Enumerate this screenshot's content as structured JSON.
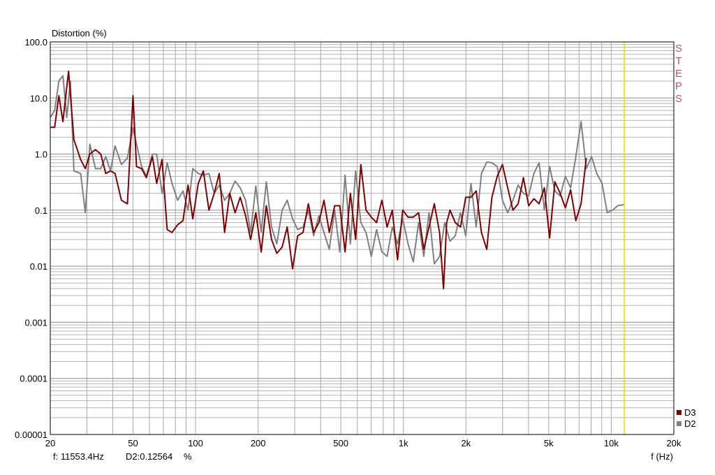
{
  "chart_data": {
    "type": "line",
    "title": "",
    "ylabel": "Distortion (%)",
    "xlabel": "f (Hz)",
    "x_scale": "log",
    "y_scale": "log",
    "xlim": [
      20,
      20000
    ],
    "ylim": [
      1e-05,
      100
    ],
    "grid": true,
    "legend_position": "bottom-right",
    "x_ticks": [
      {
        "value": 20,
        "label": "20"
      },
      {
        "value": 50,
        "label": "50"
      },
      {
        "value": 100,
        "label": "100"
      },
      {
        "value": 200,
        "label": "200"
      },
      {
        "value": 500,
        "label": "500"
      },
      {
        "value": 1000,
        "label": "1k"
      },
      {
        "value": 2000,
        "label": "2k"
      },
      {
        "value": 5000,
        "label": "5k"
      },
      {
        "value": 10000,
        "label": "10k"
      },
      {
        "value": 20000,
        "label": "20k"
      }
    ],
    "y_ticks": [
      {
        "value": 100,
        "label": "100.0"
      },
      {
        "value": 10,
        "label": "10.0"
      },
      {
        "value": 1,
        "label": "1.0"
      },
      {
        "value": 0.1,
        "label": "0.1"
      },
      {
        "value": 0.01,
        "label": "0.01"
      },
      {
        "value": 0.001,
        "label": "0.001"
      },
      {
        "value": 0.0001,
        "label": "0.0001"
      },
      {
        "value": 1e-05,
        "label": "0.00001"
      }
    ],
    "cursor_frequency": 11553.4,
    "cursor_color": "#e8e000",
    "side_label": "STEPS",
    "readout": {
      "frequency": "f:  11553.4Hz",
      "value": "D2:0.12564",
      "unit": "%"
    },
    "series": [
      {
        "name": "D2",
        "color": "#808080",
        "points": [
          [
            20,
            4.5
          ],
          [
            21,
            6.0
          ],
          [
            22,
            20
          ],
          [
            23,
            25
          ],
          [
            24,
            4.5
          ],
          [
            25,
            20
          ],
          [
            26,
            0.5
          ],
          [
            28,
            0.45
          ],
          [
            29.5,
            0.09
          ],
          [
            31,
            1.5
          ],
          [
            33,
            0.55
          ],
          [
            35,
            0.55
          ],
          [
            37,
            0.9
          ],
          [
            39,
            0.5
          ],
          [
            41,
            1.4
          ],
          [
            44,
            0.65
          ],
          [
            47,
            0.85
          ],
          [
            50,
            3.0
          ],
          [
            52,
            1.5
          ],
          [
            55,
            0.6
          ],
          [
            58,
            0.4
          ],
          [
            62,
            1.0
          ],
          [
            65,
            1.0
          ],
          [
            69,
            0.2
          ],
          [
            73,
            0.7
          ],
          [
            77,
            0.3
          ],
          [
            82,
            0.15
          ],
          [
            87,
            0.22
          ],
          [
            92,
            0.1
          ],
          [
            97,
            0.55
          ],
          [
            103,
            0.45
          ],
          [
            109,
            0.42
          ],
          [
            116,
            0.45
          ],
          [
            123,
            0.2
          ],
          [
            130,
            0.28
          ],
          [
            138,
            0.15
          ],
          [
            146,
            0.2
          ],
          [
            155,
            0.33
          ],
          [
            164,
            0.25
          ],
          [
            174,
            0.15
          ],
          [
            184,
            0.04
          ],
          [
            195,
            0.27
          ],
          [
            207,
            0.04
          ],
          [
            219,
            0.32
          ],
          [
            232,
            0.05
          ],
          [
            246,
            0.025
          ],
          [
            261,
            0.1
          ],
          [
            276,
            0.15
          ],
          [
            293,
            0.07
          ],
          [
            310,
            0.045
          ],
          [
            329,
            0.05
          ],
          [
            349,
            0.1
          ],
          [
            370,
            0.035
          ],
          [
            392,
            0.08
          ],
          [
            415,
            0.04
          ],
          [
            440,
            0.02
          ],
          [
            467,
            0.1
          ],
          [
            494,
            0.018
          ],
          [
            524,
            0.42
          ],
          [
            556,
            0.025
          ],
          [
            589,
            0.5
          ],
          [
            624,
            0.06
          ],
          [
            661,
            0.04
          ],
          [
            701,
            0.015
          ],
          [
            743,
            0.045
          ],
          [
            788,
            0.018
          ],
          [
            835,
            0.015
          ],
          [
            884,
            0.05
          ],
          [
            937,
            0.025
          ],
          [
            993,
            0.07
          ],
          [
            1053,
            0.025
          ],
          [
            1116,
            0.012
          ],
          [
            1183,
            0.06
          ],
          [
            1253,
            0.015
          ],
          [
            1328,
            0.09
          ],
          [
            1408,
            0.011
          ],
          [
            1492,
            0.015
          ],
          [
            1581,
            0.06
          ],
          [
            1676,
            0.028
          ],
          [
            1776,
            0.035
          ],
          [
            1882,
            0.09
          ],
          [
            1995,
            0.035
          ],
          [
            2114,
            0.3
          ],
          [
            2241,
            0.05
          ],
          [
            2375,
            0.45
          ],
          [
            2517,
            0.72
          ],
          [
            2667,
            0.7
          ],
          [
            2827,
            0.6
          ],
          [
            2996,
            0.15
          ],
          [
            3175,
            0.09
          ],
          [
            3365,
            0.15
          ],
          [
            3566,
            0.28
          ],
          [
            3780,
            0.2
          ],
          [
            4006,
            0.18
          ],
          [
            4245,
            0.45
          ],
          [
            4499,
            0.7
          ],
          [
            4768,
            0.1
          ],
          [
            5053,
            0.6
          ],
          [
            5355,
            0.22
          ],
          [
            5675,
            0.18
          ],
          [
            6014,
            0.4
          ],
          [
            6374,
            0.25
          ],
          [
            6755,
            0.9
          ],
          [
            7159,
            3.8
          ],
          [
            7587,
            0.55
          ],
          [
            8040,
            0.9
          ],
          [
            8521,
            0.45
          ],
          [
            9030,
            0.3
          ],
          [
            9570,
            0.09
          ],
          [
            10142,
            0.1
          ],
          [
            10748,
            0.12
          ],
          [
            11553,
            0.126
          ]
        ]
      },
      {
        "name": "D3",
        "color": "#800000",
        "points": [
          [
            20,
            3.0
          ],
          [
            21,
            3.0
          ],
          [
            22,
            11
          ],
          [
            23,
            3.8
          ],
          [
            24.5,
            30
          ],
          [
            26,
            1.8
          ],
          [
            28,
            0.8
          ],
          [
            29.5,
            0.55
          ],
          [
            31,
            1.0
          ],
          [
            33,
            1.2
          ],
          [
            35,
            1.0
          ],
          [
            37,
            0.45
          ],
          [
            39,
            0.5
          ],
          [
            41,
            0.45
          ],
          [
            44,
            0.15
          ],
          [
            47,
            0.13
          ],
          [
            50,
            11
          ],
          [
            52,
            0.6
          ],
          [
            55,
            0.55
          ],
          [
            58,
            0.38
          ],
          [
            62,
            0.9
          ],
          [
            65,
            0.3
          ],
          [
            69,
            0.8
          ],
          [
            73,
            0.045
          ],
          [
            77,
            0.04
          ],
          [
            82,
            0.055
          ],
          [
            87,
            0.065
          ],
          [
            92,
            0.28
          ],
          [
            97,
            0.07
          ],
          [
            103,
            0.3
          ],
          [
            109,
            0.5
          ],
          [
            116,
            0.1
          ],
          [
            123,
            0.2
          ],
          [
            130,
            0.45
          ],
          [
            138,
            0.04
          ],
          [
            146,
            0.2
          ],
          [
            155,
            0.09
          ],
          [
            164,
            0.17
          ],
          [
            174,
            0.08
          ],
          [
            184,
            0.03
          ],
          [
            195,
            0.09
          ],
          [
            207,
            0.018
          ],
          [
            219,
            0.12
          ],
          [
            232,
            0.03
          ],
          [
            246,
            0.017
          ],
          [
            261,
            0.022
          ],
          [
            276,
            0.05
          ],
          [
            293,
            0.009
          ],
          [
            310,
            0.035
          ],
          [
            329,
            0.04
          ],
          [
            349,
            0.13
          ],
          [
            370,
            0.04
          ],
          [
            392,
            0.06
          ],
          [
            415,
            0.15
          ],
          [
            440,
            0.04
          ],
          [
            467,
            0.12
          ],
          [
            494,
            0.12
          ],
          [
            524,
            0.018
          ],
          [
            556,
            0.2
          ],
          [
            589,
            0.03
          ],
          [
            624,
            0.65
          ],
          [
            661,
            0.1
          ],
          [
            701,
            0.075
          ],
          [
            743,
            0.06
          ],
          [
            788,
            0.15
          ],
          [
            835,
            0.05
          ],
          [
            884,
            0.1
          ],
          [
            937,
            0.013
          ],
          [
            993,
            0.1
          ],
          [
            1053,
            0.075
          ],
          [
            1116,
            0.075
          ],
          [
            1183,
            0.09
          ],
          [
            1253,
            0.02
          ],
          [
            1328,
            0.05
          ],
          [
            1408,
            0.13
          ],
          [
            1492,
            0.04
          ],
          [
            1560,
            0.004
          ],
          [
            1615,
            0.06
          ],
          [
            1676,
            0.1
          ],
          [
            1776,
            0.06
          ],
          [
            1882,
            0.05
          ],
          [
            1995,
            0.17
          ],
          [
            2114,
            0.17
          ],
          [
            2241,
            0.22
          ],
          [
            2375,
            0.04
          ],
          [
            2517,
            0.02
          ],
          [
            2667,
            0.17
          ],
          [
            2827,
            0.4
          ],
          [
            2996,
            0.65
          ],
          [
            3175,
            0.25
          ],
          [
            3365,
            0.1
          ],
          [
            3566,
            0.13
          ],
          [
            3780,
            0.38
          ],
          [
            4006,
            0.12
          ],
          [
            4245,
            0.16
          ],
          [
            4499,
            0.13
          ],
          [
            4768,
            0.25
          ],
          [
            5053,
            0.032
          ],
          [
            5355,
            0.32
          ],
          [
            5675,
            0.2
          ],
          [
            6014,
            0.11
          ],
          [
            6374,
            0.23
          ],
          [
            6755,
            0.065
          ],
          [
            7159,
            0.13
          ],
          [
            7587,
            0.85
          ]
        ]
      }
    ]
  }
}
